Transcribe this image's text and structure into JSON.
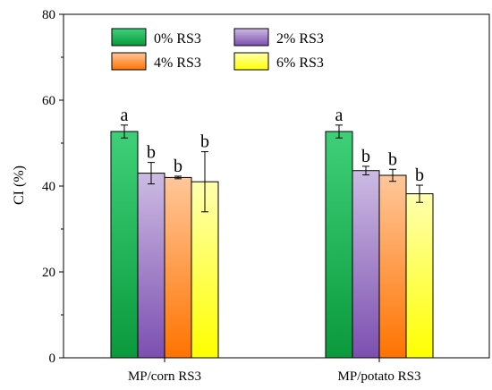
{
  "chart_data": {
    "type": "bar",
    "categories": [
      "MP/corn RS3",
      "MP/potato RS3"
    ],
    "ylabel": "CI (%)",
    "xlabel": "",
    "ylim": [
      0,
      80
    ],
    "yticks": [
      0,
      20,
      40,
      60,
      80
    ],
    "legend_position": "top",
    "series": [
      {
        "name": "0% RS3",
        "values": [
          52.7,
          52.7
        ],
        "errors": [
          1.5,
          1.5
        ],
        "letters": [
          "a",
          "a"
        ],
        "color_top": "#3fcf78",
        "color_bottom": "#0a9a3c"
      },
      {
        "name": "2% RS3",
        "values": [
          43.0,
          43.6
        ],
        "errors": [
          2.5,
          1.0
        ],
        "letters": [
          "b",
          "b"
        ],
        "color_top": "#cdbbe3",
        "color_bottom": "#7c4fb0"
      },
      {
        "name": "4% RS3",
        "values": [
          42.0,
          42.5
        ],
        "errors": [
          0.3,
          1.4
        ],
        "letters": [
          "b",
          "b"
        ],
        "color_top": "#ffc79a",
        "color_bottom": "#ff7300"
      },
      {
        "name": "6% RS3",
        "values": [
          41.0,
          38.2
        ],
        "errors": [
          7.0,
          2.0
        ],
        "letters": [
          "b",
          "b"
        ],
        "color_top": "#ffffb0",
        "color_bottom": "#ffff00"
      }
    ]
  }
}
